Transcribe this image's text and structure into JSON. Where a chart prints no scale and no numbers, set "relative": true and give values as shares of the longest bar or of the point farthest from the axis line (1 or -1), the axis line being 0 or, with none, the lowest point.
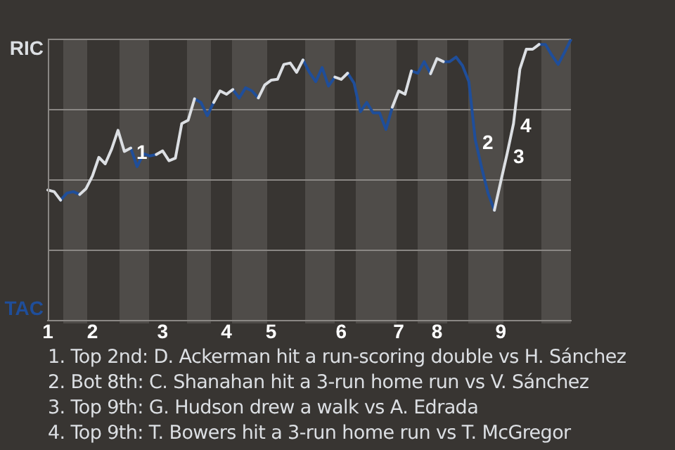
{
  "chart_data": {
    "type": "line",
    "relative": true,
    "categories": [
      "1",
      null,
      null,
      null,
      null,
      null,
      null,
      "2",
      null,
      null,
      null,
      null,
      null,
      null,
      null,
      null,
      null,
      null,
      "3",
      null,
      null,
      null,
      null,
      null,
      null,
      null,
      null,
      null,
      "4",
      null,
      null,
      null,
      null,
      null,
      null,
      "5",
      null,
      null,
      null,
      null,
      null,
      null,
      null,
      null,
      null,
      null,
      "6",
      null,
      null,
      null,
      null,
      null,
      null,
      null,
      null,
      "7",
      null,
      null,
      null,
      null,
      null,
      "8",
      null,
      null,
      null,
      null,
      null,
      null,
      null,
      null,
      null,
      "9",
      null,
      null,
      null,
      null,
      null,
      null,
      null,
      null,
      null,
      null,
      null
    ],
    "series": [
      {
        "color": "#dcdfe3",
        "values": [
          0.465,
          0.459,
          0.429,
          null,
          null,
          0.449,
          0.47,
          0.515,
          0.581,
          0.558,
          0.61,
          0.677,
          0.602,
          0.614,
          null,
          null,
          null,
          0.591,
          0.604,
          0.569,
          0.578,
          0.701,
          0.713,
          0.789,
          null,
          null,
          0.776,
          0.817,
          0.805,
          0.822,
          null,
          null,
          null,
          0.792,
          0.838,
          0.855,
          0.858,
          0.911,
          0.916,
          0.883,
          0.927,
          null,
          null,
          null,
          null,
          0.866,
          0.858,
          0.88,
          null,
          null,
          null,
          null,
          null,
          null,
          0.759,
          0.817,
          0.805,
          0.888,
          null,
          null,
          0.878,
          0.932,
          0.921,
          null,
          null,
          null,
          null,
          null,
          null,
          null,
          0.393,
          0.495,
          0.594,
          0.701,
          0.895,
          0.965,
          0.965,
          0.982,
          null,
          null,
          null,
          null,
          null
        ]
      },
      {
        "color": "#1f4e9a",
        "values": [
          null,
          null,
          0.429,
          0.454,
          0.459,
          0.449,
          null,
          null,
          null,
          null,
          null,
          null,
          null,
          0.614,
          0.548,
          0.594,
          0.586,
          0.591,
          null,
          null,
          null,
          null,
          null,
          0.789,
          0.776,
          0.729,
          0.776,
          null,
          null,
          0.822,
          0.792,
          0.828,
          0.817,
          0.792,
          null,
          null,
          null,
          null,
          null,
          null,
          0.927,
          0.883,
          0.85,
          0.9,
          0.834,
          0.866,
          null,
          0.88,
          0.845,
          0.743,
          0.776,
          0.739,
          0.739,
          0.68,
          0.759,
          null,
          null,
          0.888,
          0.88,
          0.921,
          0.878,
          null,
          0.921,
          0.921,
          0.937,
          0.907,
          0.85,
          0.644,
          0.545,
          0.454,
          0.393,
          null,
          null,
          null,
          null,
          null,
          null,
          0.982,
          0.982,
          0.944,
          0.911,
          0.954,
          1
        ]
      }
    ],
    "grid": "y",
    "marker": "none",
    "line_style": "solid",
    "annotations": [
      "RIC",
      "TAC",
      "1",
      "2",
      "3",
      "4",
      "1. Top 2nd: D. Ackerman hit a run-scoring double vs H. Sánchez",
      "2. Bot 8th: C. Shanahan hit a 3-run home run vs V. Sánchez",
      "3. Top 9th: G. Hudson drew a walk vs A. Edrada",
      "4. Top 9th: T. Bowers hit a 3-run home run vs T. McGregor"
    ]
  }
}
